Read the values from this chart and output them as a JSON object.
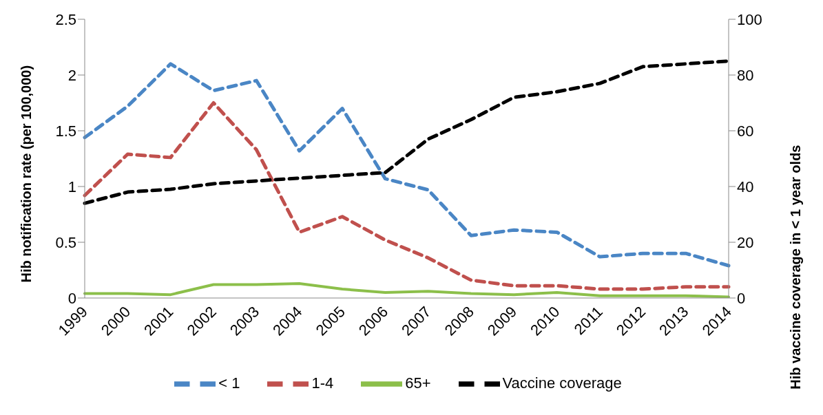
{
  "chart_data": {
    "type": "line",
    "categories": [
      "1999",
      "2000",
      "2001",
      "2002",
      "2003",
      "2004",
      "2005",
      "2006",
      "2007",
      "2008",
      "2009",
      "2010",
      "2011",
      "2012",
      "2013",
      "2014"
    ],
    "ylabel": "Hib notification rate (per 100,000)",
    "y2label": "Hib vaccine coverage in < 1 year olds",
    "ylim": [
      0,
      2.5
    ],
    "yticks": [
      0,
      0.5,
      1,
      1.5,
      2,
      2.5
    ],
    "y2lim": [
      0,
      100
    ],
    "y2ticks": [
      0,
      20,
      40,
      60,
      80,
      100
    ],
    "grid": false,
    "legend": "bottom",
    "marker": "none",
    "series": [
      {
        "name": "< 1",
        "color": "#4a86c5",
        "line_style": "dashed",
        "values": [
          1.44,
          1.72,
          2.1,
          1.86,
          1.95,
          1.32,
          1.7,
          1.07,
          0.97,
          0.56,
          0.61,
          0.59,
          0.37,
          0.4,
          0.4,
          0.29
        ]
      },
      {
        "name": "1-4",
        "color": "#c0504d",
        "line_style": "dashed",
        "values": [
          0.92,
          1.29,
          1.26,
          1.75,
          1.33,
          0.59,
          0.73,
          0.52,
          0.36,
          0.16,
          0.11,
          0.11,
          0.08,
          0.08,
          0.1,
          0.1
        ]
      },
      {
        "name": "65+",
        "color": "#8cbf4a",
        "line_style": "solid",
        "values": [
          0.04,
          0.04,
          0.03,
          0.12,
          0.12,
          0.13,
          0.08,
          0.05,
          0.06,
          0.04,
          0.03,
          0.05,
          0.02,
          0.02,
          0.02,
          0.01
        ]
      },
      {
        "name": "Vaccine coverage",
        "color": "#000000",
        "line_style": "dashed",
        "axis": "y2",
        "values": [
          34,
          38,
          39,
          41,
          42,
          43,
          44,
          45,
          57,
          64,
          72,
          74,
          77,
          83,
          84,
          85
        ]
      }
    ]
  }
}
